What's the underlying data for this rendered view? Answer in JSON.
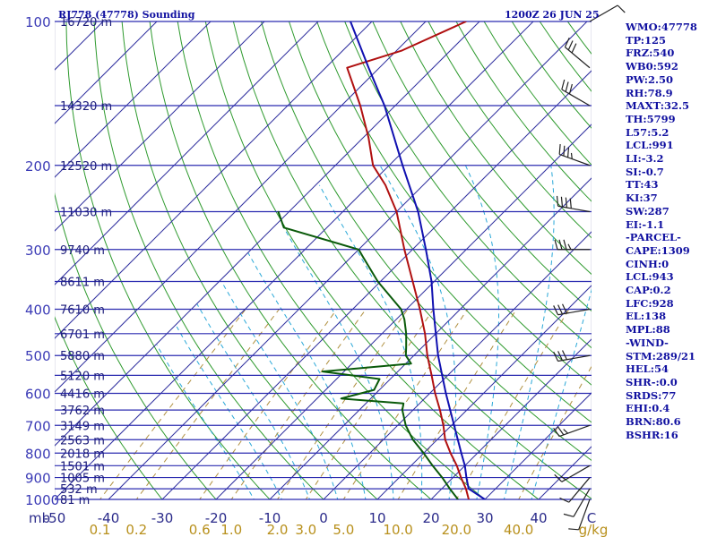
{
  "header": {
    "station_title": "RJ778 (47778) Sounding",
    "time_label": "1200Z 26 JUN 25"
  },
  "side_panel": [
    "WMO:47778",
    "TP:125",
    "FRZ:540",
    "WB0:592",
    "PW:2.50",
    "RH:78.9",
    "MAXT:32.5",
    "TH:5799",
    "L57:5.2",
    "LCL:991",
    "LI:-3.2",
    "SI:-0.7",
    "TT:43",
    "KI:37",
    "SW:287",
    "EI:-1.1",
    "-PARCEL-",
    "CAPE:1309",
    "CINH:0",
    "LCL:943",
    "CAP:0.2",
    "LFC:928",
    "EL:138",
    "MPL:88",
    "-WIND-",
    "STM:289/21",
    "HEL:54",
    "SHR-:0.0",
    "SRDS:77",
    "EHI:0.4",
    "BRN:80.6",
    "BSHR:16"
  ],
  "colors": {
    "isobar": "#2b2bb0",
    "isotherm": "#2e2e9e",
    "dry_adiabat": "#2e9a2e",
    "moist_adiabat": "#2aa8d8",
    "mixing_ratio": "#b09040",
    "temperature": "#b01010",
    "dewpoint": "#0a5a0a",
    "parcel": "#1010b0",
    "wind_barb": "#222222"
  },
  "chart_data": {
    "type": "line",
    "subtype": "skew-T log-P sounding",
    "pressure_axis": {
      "ticks": [
        100,
        200,
        300,
        400,
        500,
        600,
        700,
        800,
        900,
        1000
      ],
      "labels": [
        "100",
        "200",
        "300",
        "400",
        "500",
        "600",
        "700",
        "800",
        "900",
        "1000"
      ],
      "scale": "log",
      "range": [
        1000,
        100
      ]
    },
    "height_labels": [
      {
        "p": 100,
        "label": "16720 m"
      },
      {
        "p": 150,
        "label": "14320 m"
      },
      {
        "p": 200,
        "label": "12520 m"
      },
      {
        "p": 250,
        "label": "11030 m"
      },
      {
        "p": 300,
        "label": "9740 m"
      },
      {
        "p": 350,
        "label": "8611 m"
      },
      {
        "p": 400,
        "label": "7610 m"
      },
      {
        "p": 450,
        "label": "6701 m"
      },
      {
        "p": 500,
        "label": "5880 m"
      },
      {
        "p": 550,
        "label": "5120 m"
      },
      {
        "p": 600,
        "label": "4416 m"
      },
      {
        "p": 650,
        "label": "3762 m"
      },
      {
        "p": 700,
        "label": "3149 m"
      },
      {
        "p": 750,
        "label": "2563 m"
      },
      {
        "p": 800,
        "label": "2018 m"
      },
      {
        "p": 850,
        "label": "1501 m"
      },
      {
        "p": 900,
        "label": "1005 m"
      },
      {
        "p": 950,
        "label": "532 m"
      },
      {
        "p": 1000,
        "label": "81 m"
      }
    ],
    "temperature_axis": {
      "unit_label": "mb",
      "ticks": [
        -50,
        -40,
        -30,
        -20,
        -10,
        0,
        10,
        20,
        30,
        40
      ],
      "labels": [
        "-50",
        "-40",
        "-30",
        "-20",
        "-10",
        "0",
        "10",
        "20",
        "30",
        "40"
      ],
      "end_label": "C",
      "range": [
        -50,
        50
      ]
    },
    "mixing_ratio_axis": {
      "values": [
        0.1,
        0.2,
        0.6,
        1.0,
        2.0,
        3.0,
        5.0,
        10.0,
        20.0,
        40.0
      ],
      "labels": [
        "0.1",
        "0.2",
        "0.6",
        "1.0",
        "2.0",
        "3.0",
        "5.0",
        "10.0",
        "20.0",
        "40.0"
      ],
      "unit": "g/kg"
    },
    "series": [
      {
        "key": "temperature",
        "points": [
          {
            "p": 1000,
            "t": 27
          },
          {
            "p": 950,
            "t": 24.5
          },
          {
            "p": 900,
            "t": 21.5
          },
          {
            "p": 850,
            "t": 18.5
          },
          {
            "p": 800,
            "t": 15
          },
          {
            "p": 750,
            "t": 11.5
          },
          {
            "p": 700,
            "t": 8.5
          },
          {
            "p": 650,
            "t": 5
          },
          {
            "p": 600,
            "t": 1
          },
          {
            "p": 550,
            "t": -3
          },
          {
            "p": 500,
            "t": -7.5
          },
          {
            "p": 450,
            "t": -12
          },
          {
            "p": 400,
            "t": -17.5
          },
          {
            "p": 350,
            "t": -24
          },
          {
            "p": 300,
            "t": -31.5
          },
          {
            "p": 250,
            "t": -40
          },
          {
            "p": 220,
            "t": -47
          },
          {
            "p": 200,
            "t": -53
          },
          {
            "p": 175,
            "t": -59
          },
          {
            "p": 150,
            "t": -66.5
          },
          {
            "p": 125,
            "t": -76
          },
          {
            "p": 115,
            "t": -69
          },
          {
            "p": 100,
            "t": -62.5
          }
        ]
      },
      {
        "key": "dewpoint",
        "points": [
          {
            "p": 1000,
            "t": 25
          },
          {
            "p": 950,
            "t": 21.5
          },
          {
            "p": 900,
            "t": 18
          },
          {
            "p": 850,
            "t": 14
          },
          {
            "p": 800,
            "t": 10
          },
          {
            "p": 750,
            "t": 5.5
          },
          {
            "p": 700,
            "t": 1.5
          },
          {
            "p": 650,
            "t": -2
          },
          {
            "p": 630,
            "t": -3
          },
          {
            "p": 615,
            "t": -15.5
          },
          {
            "p": 590,
            "t": -11
          },
          {
            "p": 560,
            "t": -12
          },
          {
            "p": 540,
            "t": -24
          },
          {
            "p": 520,
            "t": -9
          },
          {
            "p": 500,
            "t": -11.5
          },
          {
            "p": 480,
            "t": -13
          },
          {
            "p": 450,
            "t": -15.5
          },
          {
            "p": 420,
            "t": -18.5
          },
          {
            "p": 400,
            "t": -21
          },
          {
            "p": 350,
            "t": -30.5
          },
          {
            "p": 310,
            "t": -38
          },
          {
            "p": 300,
            "t": -40
          },
          {
            "p": 270,
            "t": -58
          },
          {
            "p": 250,
            "t": -62
          }
        ]
      },
      {
        "key": "parcel",
        "points": [
          {
            "p": 1000,
            "t": 30
          },
          {
            "p": 950,
            "t": 25
          },
          {
            "p": 900,
            "t": 22.5
          },
          {
            "p": 850,
            "t": 20
          },
          {
            "p": 800,
            "t": 17
          },
          {
            "p": 700,
            "t": 10.5
          },
          {
            "p": 600,
            "t": 3
          },
          {
            "p": 500,
            "t": -5.5
          },
          {
            "p": 400,
            "t": -15
          },
          {
            "p": 350,
            "t": -20.5
          },
          {
            "p": 300,
            "t": -27.5
          },
          {
            "p": 250,
            "t": -36
          },
          {
            "p": 200,
            "t": -47.5
          },
          {
            "p": 150,
            "t": -62
          },
          {
            "p": 125,
            "t": -72
          },
          {
            "p": 100,
            "t": -84
          }
        ]
      }
    ],
    "wind_barbs": [
      {
        "p": 1000,
        "dir": 200,
        "kt": 10
      },
      {
        "p": 950,
        "dir": 210,
        "kt": 10
      },
      {
        "p": 900,
        "dir": 220,
        "kt": 10
      },
      {
        "p": 850,
        "dir": 240,
        "kt": 15
      },
      {
        "p": 700,
        "dir": 250,
        "kt": 25
      },
      {
        "p": 500,
        "dir": 260,
        "kt": 30
      },
      {
        "p": 400,
        "dir": 260,
        "kt": 30
      },
      {
        "p": 300,
        "dir": 270,
        "kt": 35
      },
      {
        "p": 250,
        "dir": 280,
        "kt": 40
      },
      {
        "p": 200,
        "dir": 290,
        "kt": 35
      },
      {
        "p": 150,
        "dir": 300,
        "kt": 30
      },
      {
        "p": 125,
        "dir": 310,
        "kt": 30
      },
      {
        "p": 100,
        "dir": 60,
        "kt": 10
      }
    ]
  }
}
